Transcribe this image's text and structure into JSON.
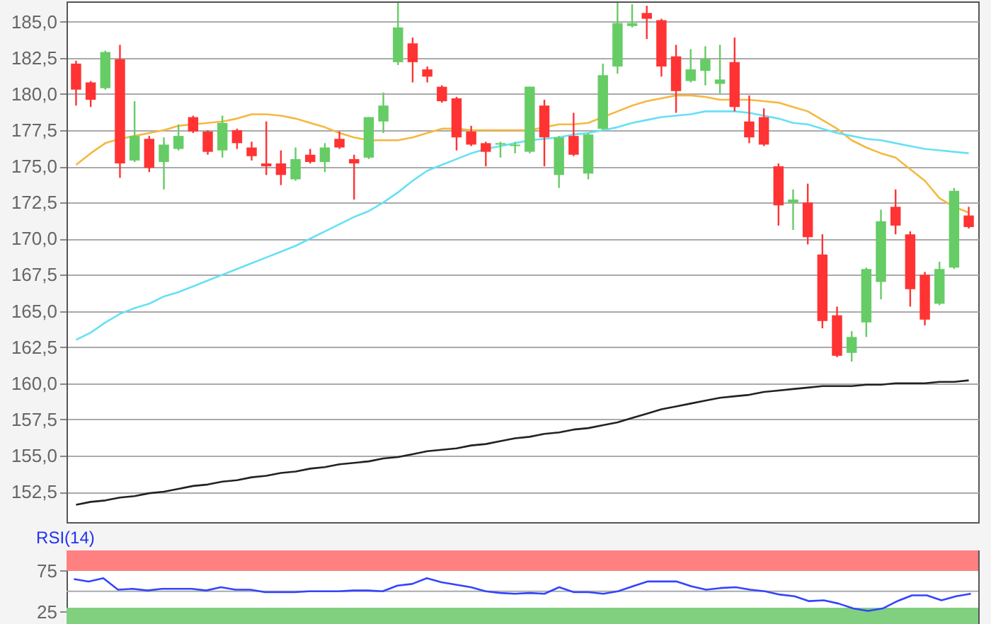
{
  "chart_data": [
    {
      "type": "candlestick",
      "categories": [
        null,
        null,
        null,
        null,
        null,
        null,
        null,
        null,
        null,
        null,
        null,
        null,
        null,
        null,
        null,
        null,
        null,
        null,
        null,
        null,
        null,
        null,
        null,
        null,
        null,
        null,
        null,
        null,
        null,
        null,
        null,
        null,
        null,
        null,
        null,
        null,
        null,
        null,
        null,
        null,
        null,
        null,
        null,
        null,
        null,
        null,
        null,
        null,
        null,
        null,
        null,
        null,
        null,
        null,
        null,
        null,
        null,
        null,
        null,
        null,
        null,
        null
      ],
      "ohlc": [
        [
          182.1,
          182.3,
          179.2,
          180.3
        ],
        [
          180.8,
          180.9,
          179.1,
          179.6
        ],
        [
          180.4,
          183.0,
          180.3,
          182.9
        ],
        [
          182.4,
          183.4,
          174.2,
          175.2
        ],
        [
          175.4,
          179.5,
          175.3,
          177.1
        ],
        [
          176.9,
          177.1,
          174.6,
          174.9
        ],
        [
          175.3,
          177.0,
          173.4,
          176.5
        ],
        [
          176.2,
          177.9,
          176.1,
          177.1
        ],
        [
          178.4,
          178.5,
          177.3,
          177.4
        ],
        [
          177.4,
          177.5,
          175.8,
          176.0
        ],
        [
          176.1,
          178.5,
          175.6,
          178.0
        ],
        [
          177.5,
          177.6,
          176.2,
          176.6
        ],
        [
          176.3,
          176.7,
          175.4,
          175.7
        ],
        [
          175.2,
          178.1,
          174.4,
          175.0
        ],
        [
          175.2,
          176.1,
          173.7,
          174.4
        ],
        [
          174.1,
          176.3,
          174.0,
          175.5
        ],
        [
          175.8,
          176.2,
          175.2,
          175.3
        ],
        [
          175.3,
          176.6,
          174.6,
          176.3
        ],
        [
          176.9,
          177.4,
          176.2,
          176.3
        ],
        [
          175.5,
          175.8,
          172.7,
          175.2
        ],
        [
          175.6,
          178.4,
          175.5,
          178.4
        ],
        [
          178.1,
          180.1,
          177.3,
          179.2
        ],
        [
          182.2,
          186.3,
          182.0,
          184.6
        ],
        [
          183.5,
          183.9,
          180.8,
          182.2
        ],
        [
          181.7,
          181.9,
          180.8,
          181.2
        ],
        [
          180.5,
          180.6,
          179.4,
          179.5
        ],
        [
          179.7,
          179.8,
          176.1,
          177.0
        ],
        [
          177.4,
          177.8,
          176.4,
          176.5
        ],
        [
          176.6,
          176.7,
          175.0,
          176.0
        ],
        [
          176.5,
          176.7,
          175.6,
          176.6
        ],
        [
          176.4,
          176.7,
          175.9,
          176.5
        ],
        [
          176.0,
          180.5,
          175.9,
          180.5
        ],
        [
          179.2,
          179.6,
          175.0,
          177.0
        ],
        [
          174.4,
          177.1,
          173.5,
          177.0
        ],
        [
          177.1,
          178.7,
          175.7,
          175.8
        ],
        [
          174.5,
          177.3,
          174.1,
          177.2
        ],
        [
          177.6,
          182.1,
          177.5,
          181.3
        ],
        [
          181.9,
          186.3,
          181.4,
          184.9
        ],
        [
          184.7,
          186.2,
          184.6,
          184.9
        ],
        [
          185.6,
          186.1,
          183.8,
          185.2
        ],
        [
          185.1,
          185.2,
          181.2,
          181.9
        ],
        [
          182.6,
          183.4,
          178.7,
          180.2
        ],
        [
          180.9,
          183.1,
          180.8,
          181.7
        ],
        [
          181.6,
          183.3,
          180.6,
          182.4
        ],
        [
          180.7,
          183.4,
          180.0,
          181.0
        ],
        [
          182.2,
          183.9,
          178.8,
          179.1
        ],
        [
          178.1,
          179.9,
          176.6,
          177.0
        ],
        [
          178.4,
          179.0,
          176.4,
          176.5
        ],
        [
          175.0,
          175.2,
          170.9,
          172.3
        ],
        [
          172.5,
          173.4,
          170.6,
          172.7
        ],
        [
          172.5,
          173.8,
          169.6,
          170.1
        ],
        [
          168.9,
          170.3,
          163.8,
          164.3
        ],
        [
          164.7,
          165.3,
          161.8,
          161.9
        ],
        [
          162.1,
          163.6,
          161.5,
          163.2
        ],
        [
          164.2,
          168.0,
          163.2,
          167.9
        ],
        [
          167.0,
          172.0,
          165.8,
          171.2
        ],
        [
          172.2,
          173.4,
          170.3,
          170.9
        ],
        [
          170.3,
          170.5,
          165.3,
          166.5
        ],
        [
          167.5,
          167.7,
          164.0,
          164.4
        ],
        [
          165.5,
          168.4,
          165.4,
          167.9
        ],
        [
          168.0,
          173.5,
          167.9,
          173.3
        ],
        [
          171.6,
          172.2,
          170.7,
          170.8
        ]
      ],
      "colors": [
        "#ff3333",
        "#ff3333",
        "#66cc66",
        "#ff3333",
        "#66cc66",
        "#ff3333",
        "#66cc66",
        "#66cc66",
        "#ff3333",
        "#ff3333",
        "#66cc66",
        "#ff3333",
        "#ff3333",
        "#ff3333",
        "#ff3333",
        "#66cc66",
        "#ff3333",
        "#66cc66",
        "#ff3333",
        "#ff3333",
        "#66cc66",
        "#66cc66",
        "#66cc66",
        "#ff3333",
        "#ff3333",
        "#ff3333",
        "#ff3333",
        "#ff3333",
        "#ff3333",
        "#66cc66",
        "#66cc66",
        "#66cc66",
        "#ff3333",
        "#66cc66",
        "#ff3333",
        "#66cc66",
        "#66cc66",
        "#66cc66",
        "#66cc66",
        "#ff3333",
        "#ff3333",
        "#ff3333",
        "#66cc66",
        "#66cc66",
        "#66cc66",
        "#ff3333",
        "#ff3333",
        "#ff3333",
        "#ff3333",
        "#66cc66",
        "#ff3333",
        "#ff3333",
        "#ff3333",
        "#66cc66",
        "#66cc66",
        "#66cc66",
        "#ff3333",
        "#ff3333",
        "#ff3333",
        "#66cc66",
        "#66cc66",
        "#ff3333"
      ],
      "series": [
        {
          "type": "line",
          "color": "#f5b840",
          "values": [
            175.1,
            175.9,
            176.6,
            176.9,
            177.1,
            177.3,
            177.5,
            177.8,
            177.9,
            178.0,
            178.1,
            178.3,
            178.6,
            178.6,
            178.5,
            178.3,
            178.0,
            177.7,
            177.3,
            177.0,
            176.8,
            176.8,
            176.8,
            177.0,
            177.3,
            177.6,
            177.6,
            177.5,
            177.5,
            177.5,
            177.5,
            177.5,
            177.7,
            177.9,
            177.9,
            178.0,
            178.4,
            178.8,
            179.2,
            179.5,
            179.7,
            179.9,
            179.9,
            179.8,
            179.6,
            179.6,
            179.6,
            179.5,
            179.4,
            179.1,
            178.8,
            178.2,
            177.6,
            176.8,
            176.3,
            175.9,
            175.6,
            174.8,
            174.0,
            172.8,
            172.2,
            171.8
          ]
        },
        {
          "type": "line",
          "color": "#66e0f5",
          "values": [
            163.0,
            163.5,
            164.2,
            164.8,
            165.2,
            165.5,
            166.0,
            166.3,
            166.7,
            167.1,
            167.5,
            167.9,
            168.3,
            168.7,
            169.1,
            169.5,
            170.0,
            170.5,
            171.0,
            171.5,
            171.9,
            172.5,
            173.2,
            174.0,
            174.7,
            175.1,
            175.5,
            175.9,
            176.2,
            176.4,
            176.6,
            176.8,
            176.9,
            177.0,
            177.2,
            177.3,
            177.5,
            177.7,
            178.0,
            178.2,
            178.4,
            178.5,
            178.6,
            178.8,
            178.8,
            178.8,
            178.7,
            178.5,
            178.3,
            178.0,
            177.9,
            177.6,
            177.3,
            177.1,
            176.9,
            176.8,
            176.6,
            176.4,
            176.2,
            176.1,
            176.0,
            175.9
          ]
        },
        {
          "type": "line",
          "color": "#222222",
          "values": [
            151.6,
            151.8,
            151.9,
            152.1,
            152.2,
            152.4,
            152.5,
            152.7,
            152.9,
            153.0,
            153.2,
            153.3,
            153.5,
            153.6,
            153.8,
            153.9,
            154.1,
            154.2,
            154.4,
            154.5,
            154.6,
            154.8,
            154.9,
            155.1,
            155.3,
            155.4,
            155.5,
            155.7,
            155.8,
            156.0,
            156.2,
            156.3,
            156.5,
            156.6,
            156.8,
            156.9,
            157.1,
            157.3,
            157.6,
            157.9,
            158.2,
            158.4,
            158.6,
            158.8,
            159.0,
            159.1,
            159.2,
            159.4,
            159.5,
            159.6,
            159.7,
            159.8,
            159.8,
            159.8,
            159.9,
            159.9,
            160.0,
            160.0,
            160.0,
            160.1,
            160.1,
            160.2
          ]
        }
      ],
      "ylim": [
        150.4,
        186.4
      ],
      "yticks": [
        {
          "value": 152.5,
          "label": "152,5"
        },
        {
          "value": 155,
          "label": "155,0"
        },
        {
          "value": 157.5,
          "label": "157,5"
        },
        {
          "value": 160,
          "label": "160,0"
        },
        {
          "value": 162.5,
          "label": "162,5"
        },
        {
          "value": 165,
          "label": "165,0"
        },
        {
          "value": 167.5,
          "label": "167,5"
        },
        {
          "value": 170,
          "label": "170,0"
        },
        {
          "value": 172.5,
          "label": "172,5"
        },
        {
          "value": 175,
          "label": "175,0"
        },
        {
          "value": 177.5,
          "label": "177,5"
        },
        {
          "value": 180,
          "label": "180,0"
        },
        {
          "value": 182.5,
          "label": "182,5"
        },
        {
          "value": 185,
          "label": "185,0"
        }
      ],
      "grid": "y",
      "tick_labels": "y"
    },
    {
      "type": "line",
      "title": "RSI(14)",
      "categories": [
        null,
        null,
        null,
        null,
        null,
        null,
        null,
        null,
        null,
        null,
        null,
        null,
        null,
        null,
        null,
        null,
        null,
        null,
        null,
        null,
        null,
        null,
        null,
        null,
        null,
        null,
        null,
        null,
        null,
        null,
        null,
        null,
        null,
        null,
        null,
        null,
        null,
        null,
        null,
        null,
        null,
        null,
        null,
        null,
        null,
        null,
        null,
        null,
        null,
        null,
        null,
        null,
        null,
        null,
        null,
        null,
        null,
        null,
        null,
        null,
        null,
        null
      ],
      "series": [
        {
          "color": "#3344ff",
          "values": [
            65,
            62,
            66,
            52,
            53,
            51,
            53,
            53,
            53,
            51,
            55,
            52,
            52,
            49,
            49,
            49,
            50,
            50,
            50,
            51,
            51,
            50,
            57,
            59,
            66,
            61,
            58,
            55,
            50,
            48,
            47,
            48,
            47,
            55,
            49,
            49,
            47,
            50,
            56,
            62,
            62,
            62,
            56,
            52,
            54,
            55,
            52,
            50,
            46,
            44,
            38,
            39,
            35,
            29,
            26,
            29,
            38,
            45,
            45,
            39,
            44,
            47
          ]
        }
      ],
      "ylim": [
        10,
        100
      ],
      "yticks": [
        25,
        75
      ],
      "bands": [
        {
          "axis": "y",
          "from": 75,
          "to": 100,
          "color": "#ff8080"
        },
        {
          "axis": "y",
          "from": 10,
          "to": 30,
          "color": "#80d080"
        }
      ],
      "ref_lines": [
        {
          "axis": "y",
          "value": 50,
          "color": "#aaaaaa"
        }
      ],
      "tick_labels": "y"
    }
  ]
}
